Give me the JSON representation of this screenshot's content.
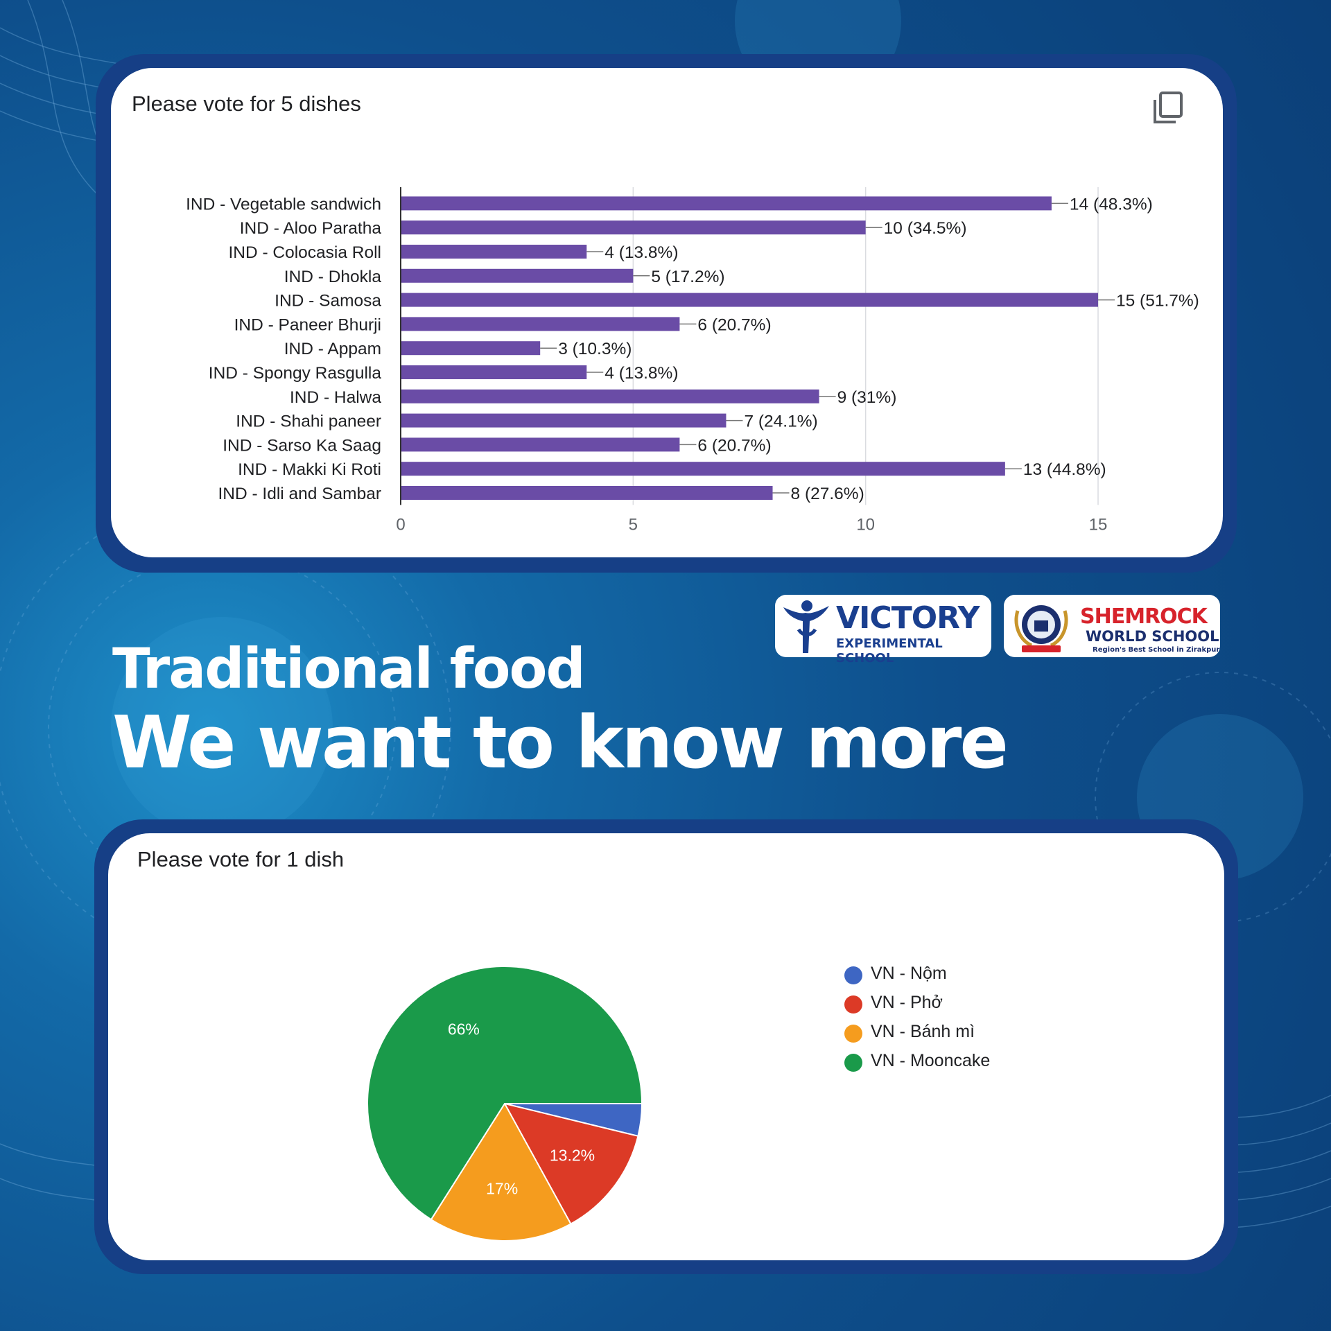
{
  "header": {
    "line1": "Traditional food",
    "line2": "We want to know more"
  },
  "logos": {
    "victory": {
      "name": "VICTORY",
      "subtitle": "EXPERIMENTAL SCHOOL",
      "icon": "victory-figure-icon"
    },
    "shemrock": {
      "name": "SHEMROCK",
      "subtitle": "WORLD SCHOOL",
      "tagline": "Region's Best School in Zirakpur",
      "icon": "shemrock-crest-icon"
    }
  },
  "colors": {
    "bar": "#6a4ca6",
    "pie": [
      "#3e66c3",
      "#dc3a26",
      "#f59c1e",
      "#1a9a4a"
    ]
  },
  "chart_data": [
    {
      "type": "bar",
      "orientation": "horizontal",
      "title": "Please vote for 5 dishes",
      "categories": [
        "IND - Vegetable sandwich",
        "IND - Aloo Paratha",
        "IND - Colocasia Roll",
        "IND - Dhokla",
        "IND - Samosa",
        "IND - Paneer Bhurji",
        "IND - Appam",
        "IND - Spongy Rasgulla",
        "IND - Halwa",
        "IND - Shahi paneer",
        "IND - Sarso Ka Saag",
        "IND - Makki Ki Roti",
        "IND - Idli and Sambar"
      ],
      "values": [
        14,
        10,
        4,
        5,
        15,
        6,
        3,
        4,
        9,
        7,
        6,
        13,
        8
      ],
      "data_labels": [
        "14 (48.3%)",
        "10 (34.5%)",
        "4 (13.8%)",
        "5 (17.2%)",
        "15 (51.7%)",
        "6 (20.7%)",
        "3 (10.3%)",
        "4 (13.8%)",
        "9 (31%)",
        "7 (24.1%)",
        "6 (20.7%)",
        "13 (44.8%)",
        "8 (27.6%)"
      ],
      "xlim": [
        0,
        15
      ],
      "xticks": [
        "0",
        "5",
        "10",
        "15"
      ],
      "grid": true,
      "icon": "copy-icon"
    },
    {
      "type": "pie",
      "title": "Please vote for 1 dish",
      "labels": [
        "VN - Nộm",
        "VN - Phở",
        "VN - Bánh mì",
        "VN - Mooncake"
      ],
      "values": [
        3.8,
        13.2,
        17,
        66
      ],
      "slice_labels": [
        "",
        "13.2%",
        "17%",
        "66%"
      ],
      "legend_position": "right"
    }
  ]
}
